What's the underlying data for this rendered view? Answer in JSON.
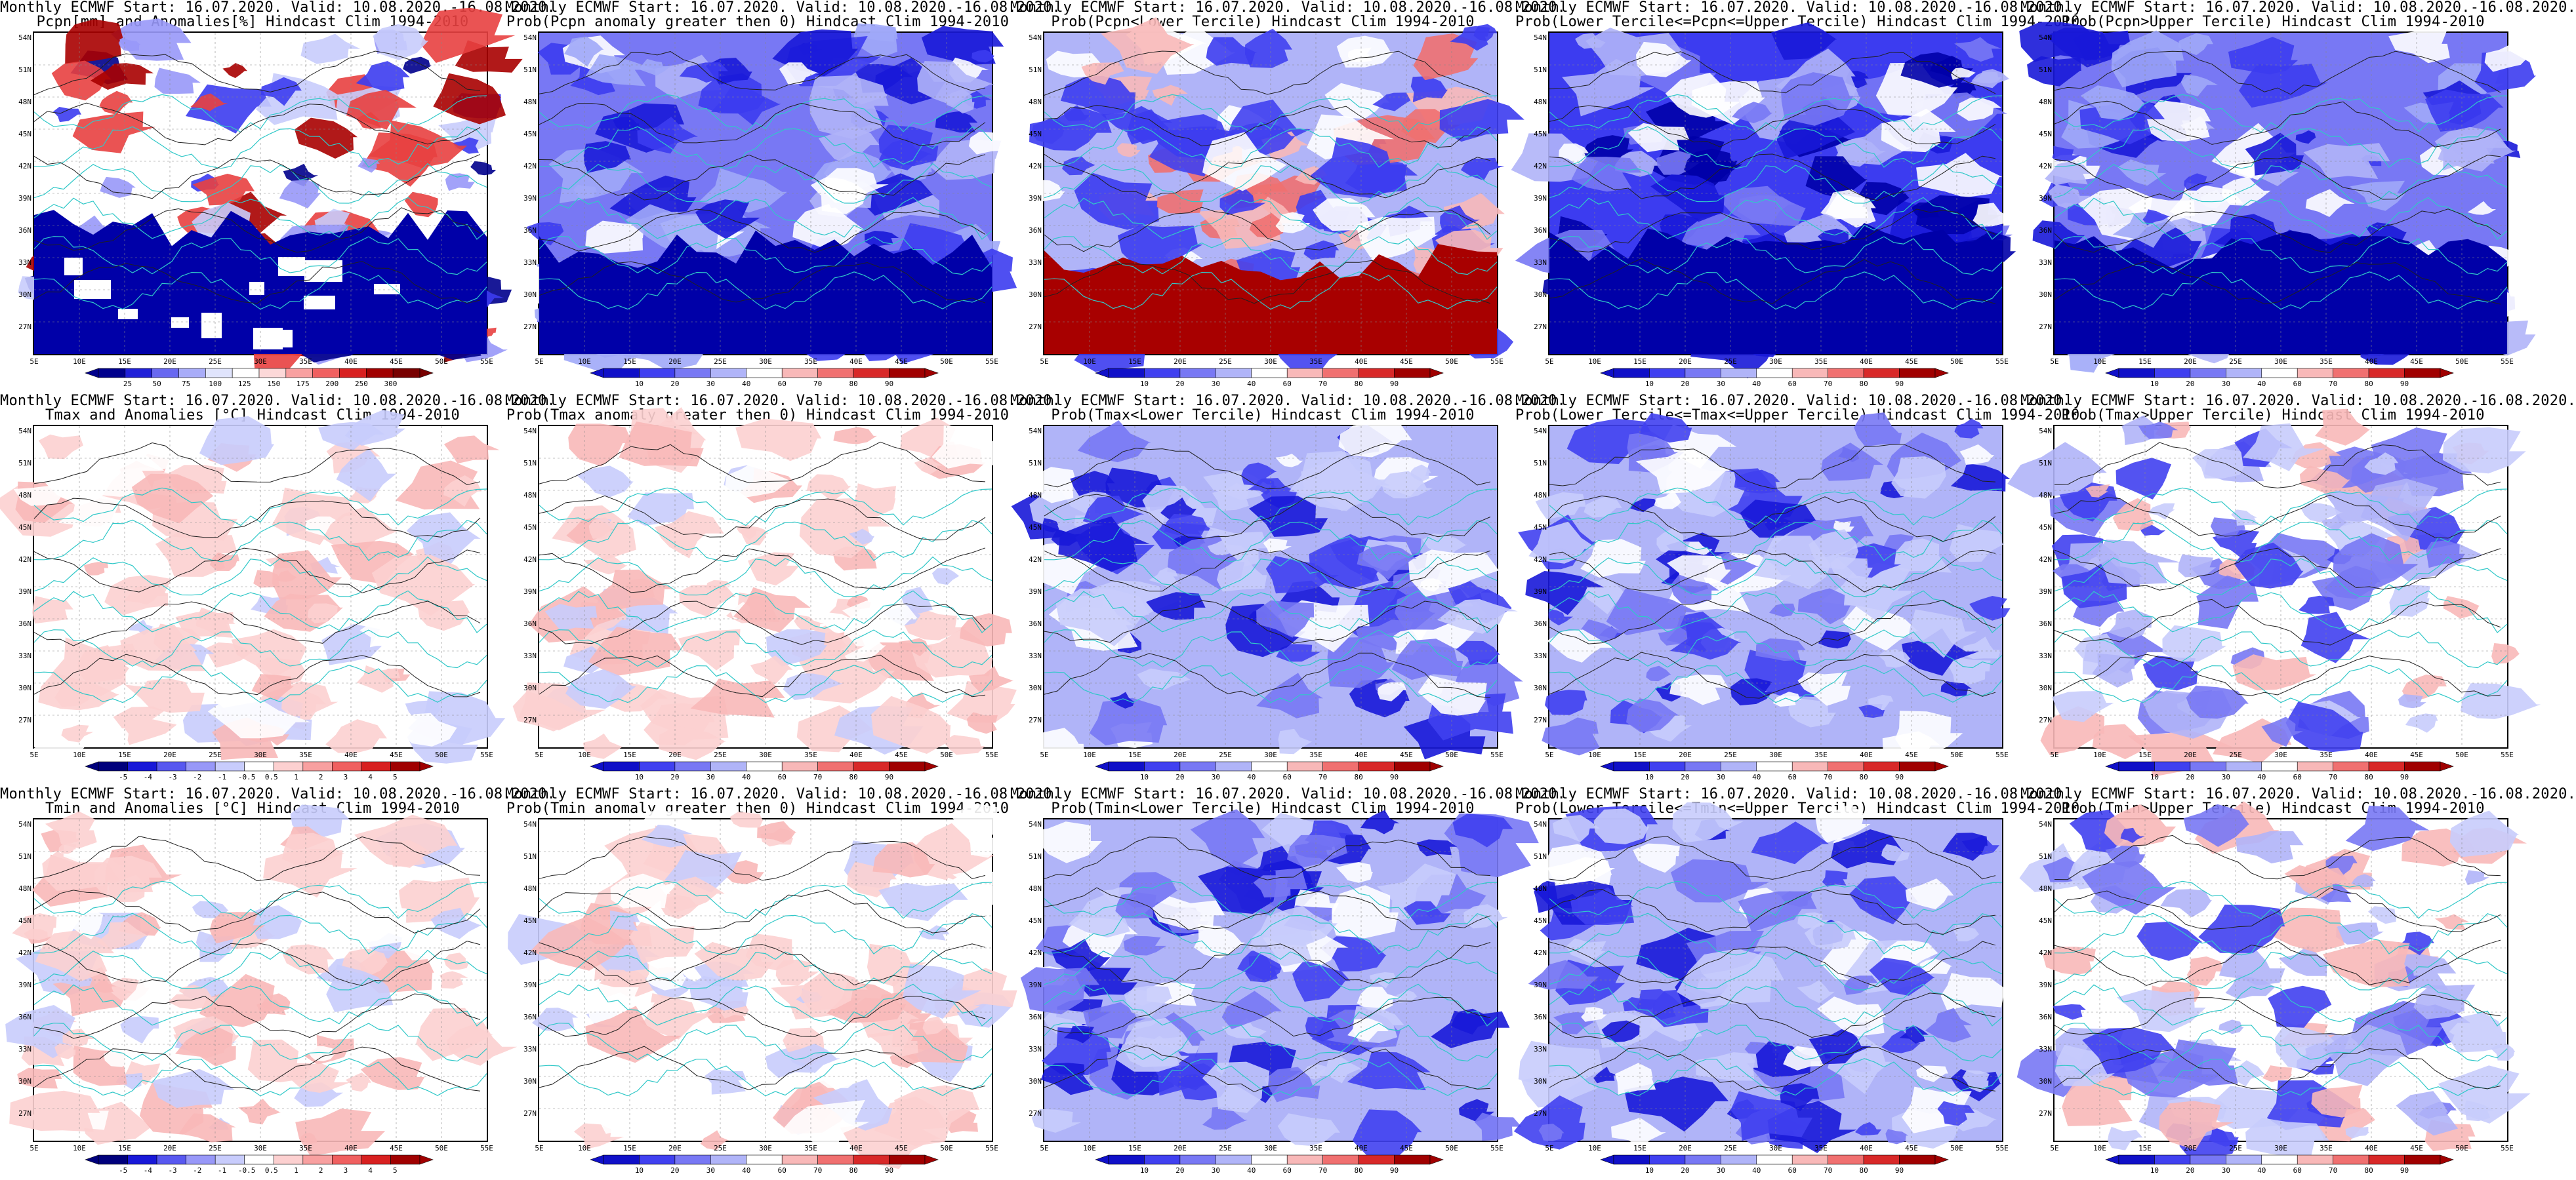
{
  "line1": "Monthly ECMWF Start: 16.07.2020. Valid: 10.08.2020.-16.08.2020.",
  "lat_labels": [
    "54N",
    "51N",
    "48N",
    "45N",
    "42N",
    "39N",
    "36N",
    "33N",
    "30N",
    "27N"
  ],
  "lon_labels": [
    "5E",
    "10E",
    "15E",
    "20E",
    "25E",
    "30E",
    "35E",
    "40E",
    "45E",
    "50E",
    "55E"
  ],
  "colors": {
    "coast": "#30c8c8",
    "contour": "#202020",
    "deep_blue": "#0000a8",
    "mid_blue": "#3c3cf0",
    "light_blue": "#a0a8f8",
    "pale_red": "#f8b8b8",
    "mid_red": "#e84040",
    "dark_red": "#a80000"
  },
  "palettes": {
    "anomaly": [
      "#00007c",
      "#1818d8",
      "#5858f0",
      "#9898f8",
      "#c8ccfc",
      "#ffffff",
      "#fcd0d0",
      "#f8a0a0",
      "#f06060",
      "#d82020",
      "#a00000"
    ],
    "prob": [
      "#1010c8",
      "#4040f0",
      "#7878f4",
      "#b0b4f8",
      "#ffffff",
      "#f8b8b8",
      "#f07070",
      "#d82828",
      "#a00000"
    ],
    "pcpn": [
      "#00008c",
      "#2020d8",
      "#6868f0",
      "#a8acf8",
      "#e0e4fc",
      "#ffffff",
      "#fcd8d8",
      "#f8a0a0",
      "#f06060",
      "#d82020",
      "#a00000",
      "#780000"
    ]
  },
  "panels": [
    {
      "line2": "Pcpn[mm] and Anomalies[%] Hindcast Clim 1994-2010",
      "scheme": "pcpn",
      "bar": "pcpn",
      "cbar_labels": [
        "25",
        "50",
        "75",
        "100",
        "125",
        "150",
        "175",
        "200",
        "250",
        "300"
      ]
    },
    {
      "line2": "Prob(Pcpn anomaly greater then 0) Hindcast Clim 1994-2010",
      "scheme": "bluebelt",
      "bar": "prob",
      "cbar_labels": [
        "10",
        "20",
        "30",
        "40",
        "60",
        "70",
        "80",
        "90"
      ]
    },
    {
      "line2": "Prob(Pcpn<Lower Tercile) Hindcast Clim 1994-2010",
      "scheme": "redsouth",
      "bar": "prob",
      "cbar_labels": [
        "10",
        "20",
        "30",
        "40",
        "60",
        "70",
        "80",
        "90"
      ]
    },
    {
      "line2": "Prob(Lower Tercile<=Pcpn<=Upper Tercile) Hindcast Clim 1994-2010",
      "scheme": "deepblue",
      "bar": "prob",
      "cbar_labels": [
        "10",
        "20",
        "30",
        "40",
        "60",
        "70",
        "80",
        "90"
      ]
    },
    {
      "line2": "Prob(Pcpn>Upper Tercile) Hindcast Clim 1994-2010",
      "scheme": "bluebelt",
      "bar": "prob",
      "cbar_labels": [
        "10",
        "20",
        "30",
        "40",
        "60",
        "70",
        "80",
        "90"
      ]
    },
    {
      "line2": "Tmax and Anomalies [°C] Hindcast Clim 1994-2010",
      "scheme": "tanom",
      "bar": "anomaly",
      "cbar_labels": [
        "-5",
        "-4",
        "-3",
        "-2",
        "-1",
        "-0.5",
        "0.5",
        "1",
        "2",
        "3",
        "4",
        "5"
      ]
    },
    {
      "line2": "Prob(Tmax anomaly greater then 0) Hindcast Clim 1994-2010",
      "scheme": "tanom",
      "bar": "prob",
      "cbar_labels": [
        "10",
        "20",
        "30",
        "40",
        "60",
        "70",
        "80",
        "90"
      ]
    },
    {
      "line2": "Prob(Tmax<Lower Tercile) Hindcast Clim 1994-2010",
      "scheme": "mixblue",
      "bar": "prob",
      "cbar_labels": [
        "10",
        "20",
        "30",
        "40",
        "60",
        "70",
        "80",
        "90"
      ]
    },
    {
      "line2": "Prob(Lower Tercile<=Tmax<=Upper Tercile) Hindcast Clim 1994-2010",
      "scheme": "mixblue",
      "bar": "prob",
      "cbar_labels": [
        "10",
        "20",
        "30",
        "40",
        "60",
        "70",
        "80",
        "90"
      ]
    },
    {
      "line2": "Prob(Tmax>Upper Tercile) Hindcast Clim 1994-2010",
      "scheme": "lightblue",
      "bar": "prob",
      "cbar_labels": [
        "10",
        "20",
        "30",
        "40",
        "60",
        "70",
        "80",
        "90"
      ]
    },
    {
      "line2": "Tmin and Anomalies [°C] Hindcast Clim 1994-2010",
      "scheme": "tanom",
      "bar": "anomaly",
      "cbar_labels": [
        "-5",
        "-4",
        "-3",
        "-2",
        "-1",
        "-0.5",
        "0.5",
        "1",
        "2",
        "3",
        "4",
        "5"
      ]
    },
    {
      "line2": "Prob(Tmin anomaly greater then 0) Hindcast Clim 1994-2010",
      "scheme": "tanom",
      "bar": "prob",
      "cbar_labels": [
        "10",
        "20",
        "30",
        "40",
        "60",
        "70",
        "80",
        "90"
      ]
    },
    {
      "line2": "Prob(Tmin<Lower Tercile) Hindcast Clim 1994-2010",
      "scheme": "mixblue",
      "bar": "prob",
      "cbar_labels": [
        "10",
        "20",
        "30",
        "40",
        "60",
        "70",
        "80",
        "90"
      ]
    },
    {
      "line2": "Prob(Lower Tercile<=Tmin<=Upper Tercile) Hindcast Clim 1994-2010",
      "scheme": "mixblue",
      "bar": "prob",
      "cbar_labels": [
        "10",
        "20",
        "30",
        "40",
        "60",
        "70",
        "80",
        "90"
      ]
    },
    {
      "line2": "Prob(Tmin>Upper Tercile) Hindcast Clim 1994-2010",
      "scheme": "lightblue",
      "bar": "prob",
      "cbar_labels": [
        "10",
        "20",
        "30",
        "40",
        "60",
        "70",
        "80",
        "90"
      ]
    }
  ]
}
